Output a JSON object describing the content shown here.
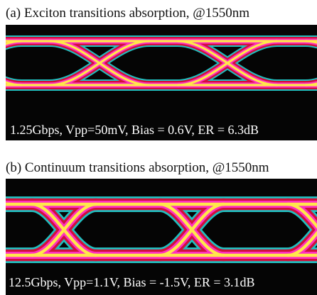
{
  "panels": [
    {
      "caption": "(a)  Exciton transitions absorption, @1550nm",
      "annotation": "1.25Gbps, Vpp=50mV, Bias = 0.6V, ER = 6.3dB"
    },
    {
      "caption": "(b)  Continuum transitions absorption, @1550nm",
      "annotation": "12.5Gbps, Vpp=1.1V, Bias = -1.5V, ER = 3.1dB"
    }
  ]
}
